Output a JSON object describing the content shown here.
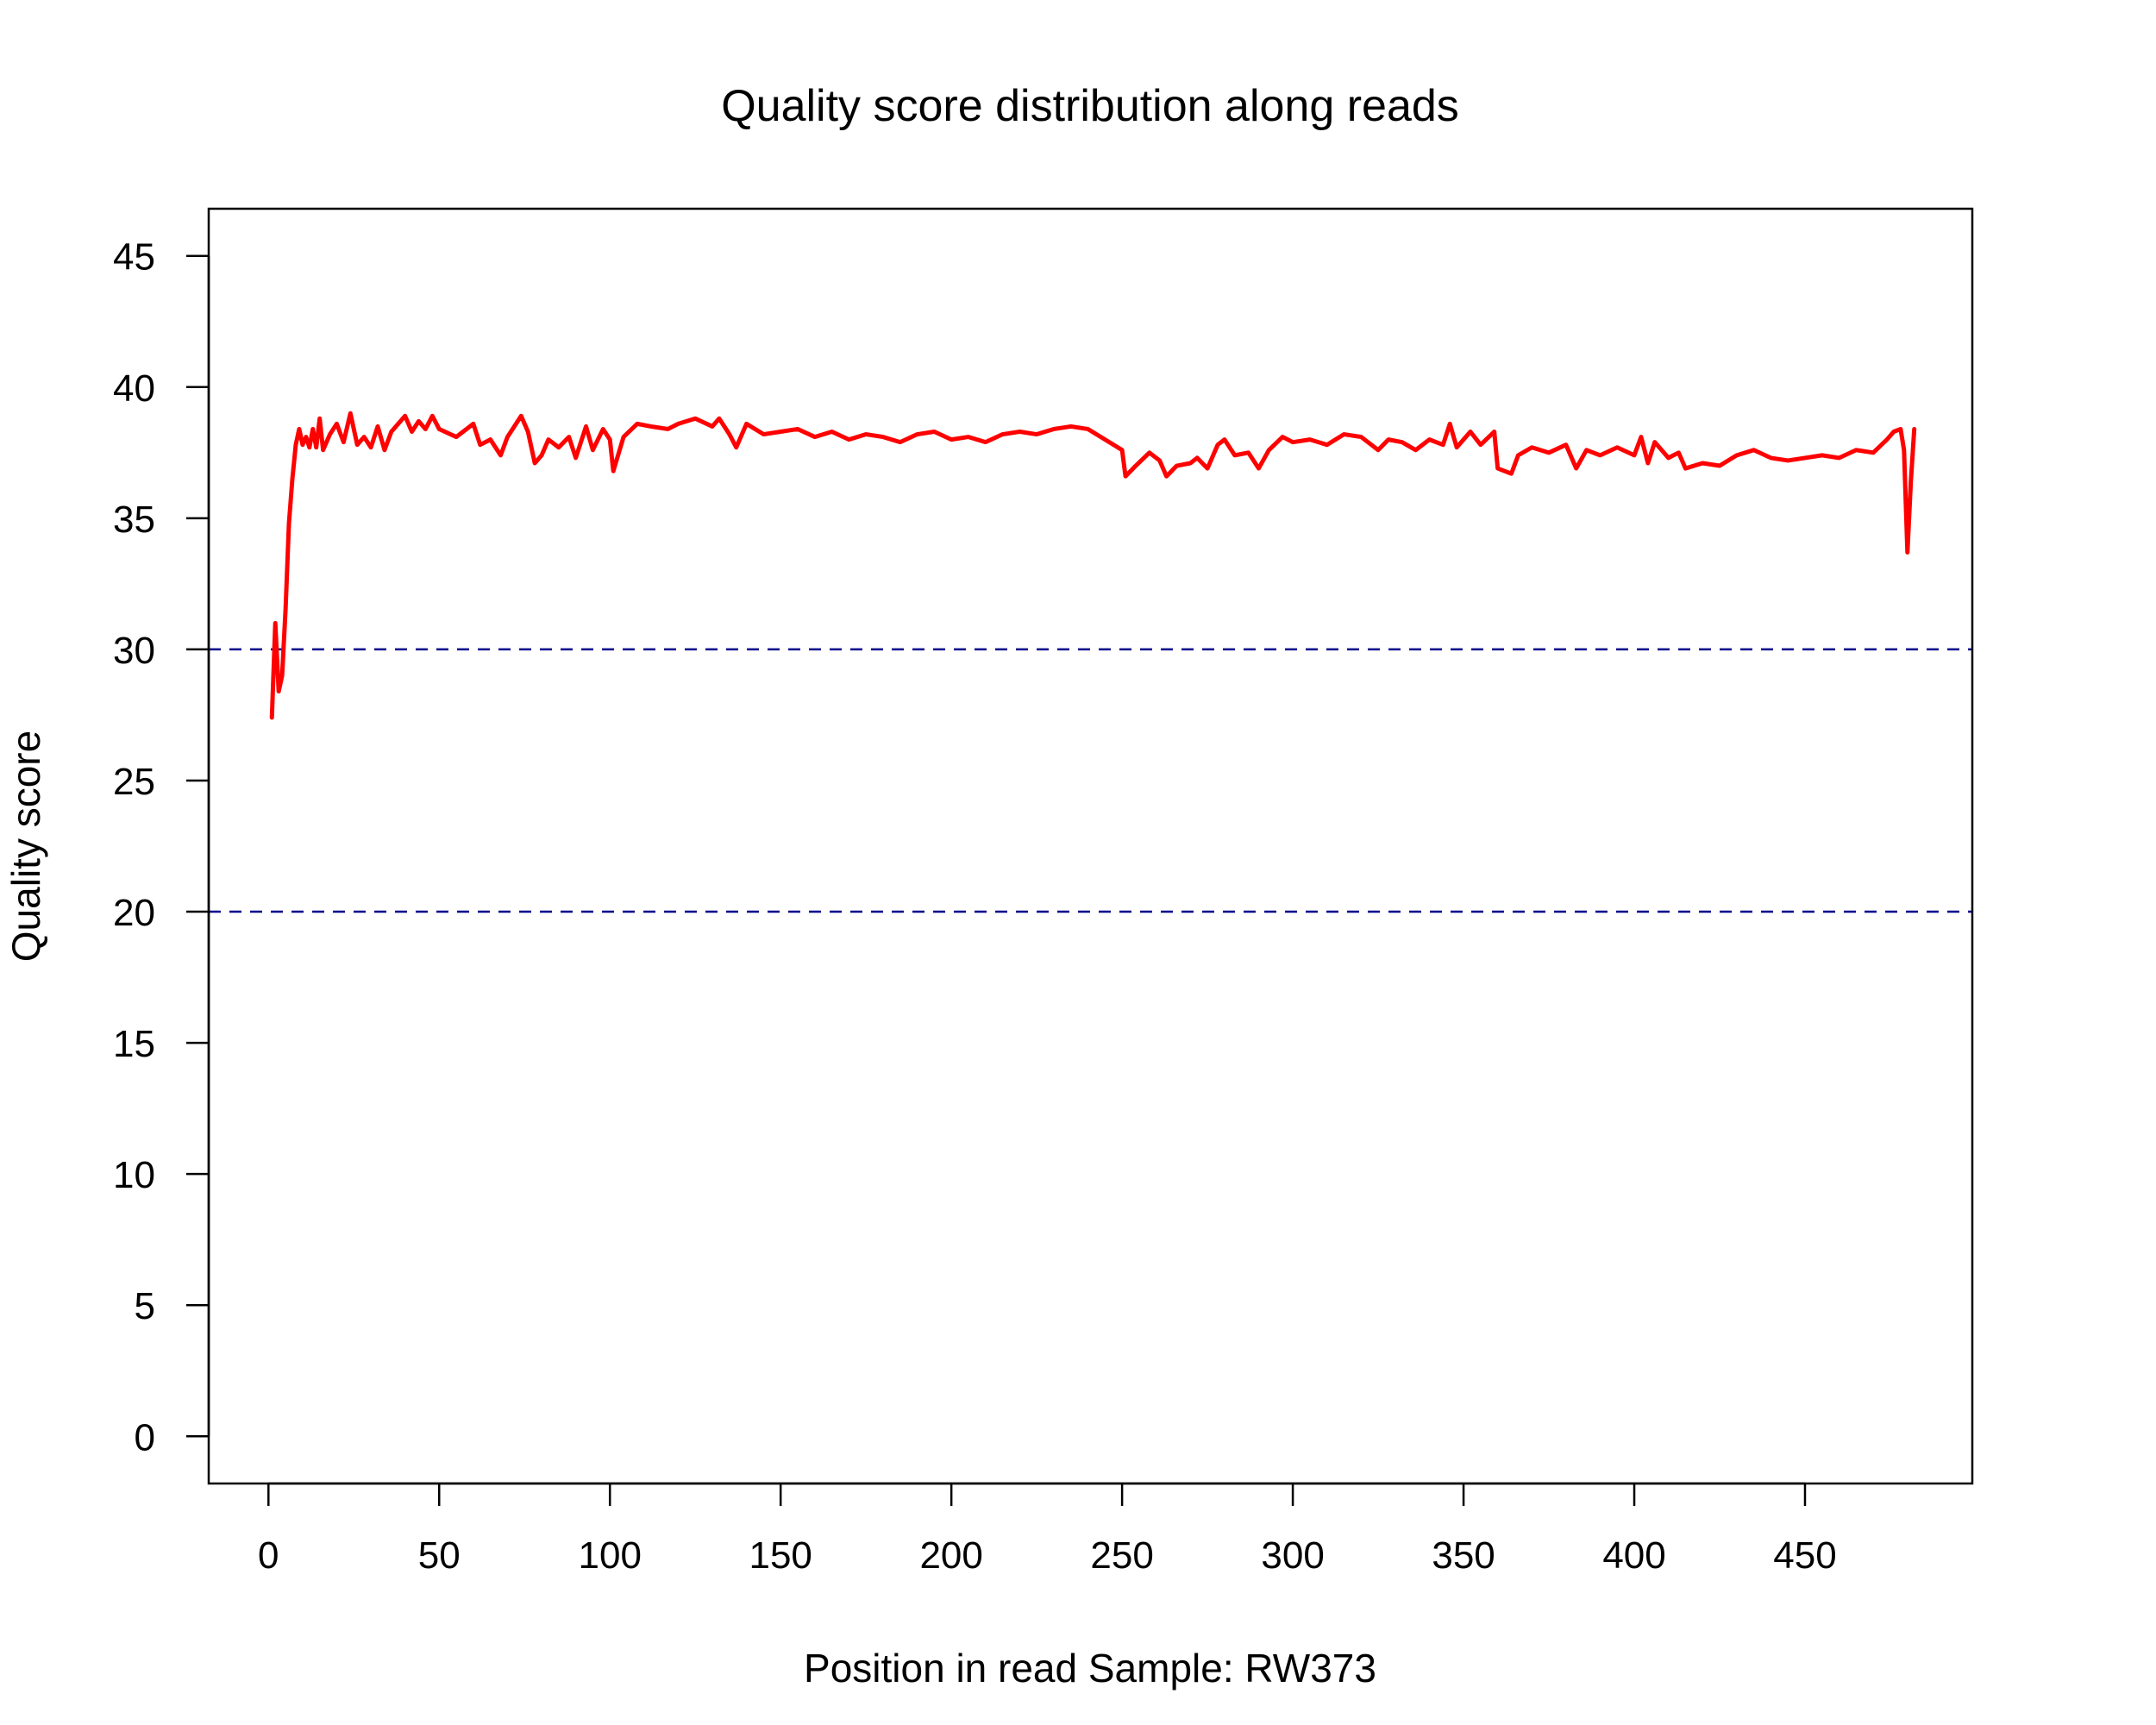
{
  "chart_data": {
    "type": "line",
    "title": "Quality score distribution along reads",
    "xlabel": "Position in read  Sample: RW373",
    "ylabel": "Quality score",
    "xlim": [
      -17.5,
      499
    ],
    "ylim": [
      -1.8,
      46.8
    ],
    "x_ticks": [
      0,
      50,
      100,
      150,
      200,
      250,
      300,
      350,
      400,
      450
    ],
    "y_ticks": [
      0,
      5,
      10,
      15,
      20,
      25,
      30,
      35,
      40,
      45
    ],
    "reference_lines": [
      {
        "y": 30,
        "style": "dashed",
        "color": "#00008B"
      },
      {
        "y": 20,
        "style": "dashed",
        "color": "#00008B"
      }
    ],
    "grid": false,
    "legend": "none",
    "series": [
      {
        "color": "#FF0000",
        "points": [
          [
            1,
            27.4
          ],
          [
            2,
            31.0
          ],
          [
            3,
            28.4
          ],
          [
            4,
            29.0
          ],
          [
            5,
            31.5
          ],
          [
            6,
            34.8
          ],
          [
            7,
            36.5
          ],
          [
            8,
            37.8
          ],
          [
            9,
            38.4
          ],
          [
            10,
            37.8
          ],
          [
            11,
            38.1
          ],
          [
            12,
            37.7
          ],
          [
            13,
            38.4
          ],
          [
            14,
            37.7
          ],
          [
            15,
            38.8
          ],
          [
            16,
            37.6
          ],
          [
            18,
            38.2
          ],
          [
            20,
            38.6
          ],
          [
            22,
            37.9
          ],
          [
            24,
            39.0
          ],
          [
            26,
            37.8
          ],
          [
            28,
            38.1
          ],
          [
            30,
            37.7
          ],
          [
            32,
            38.5
          ],
          [
            34,
            37.6
          ],
          [
            36,
            38.3
          ],
          [
            38,
            38.6
          ],
          [
            40,
            38.9
          ],
          [
            42,
            38.3
          ],
          [
            44,
            38.7
          ],
          [
            46,
            38.4
          ],
          [
            48,
            38.9
          ],
          [
            50,
            38.4
          ],
          [
            55,
            38.1
          ],
          [
            60,
            38.6
          ],
          [
            62,
            37.8
          ],
          [
            65,
            38.0
          ],
          [
            68,
            37.4
          ],
          [
            70,
            38.1
          ],
          [
            74,
            38.9
          ],
          [
            76,
            38.3
          ],
          [
            78,
            37.1
          ],
          [
            80,
            37.4
          ],
          [
            82,
            38.0
          ],
          [
            85,
            37.7
          ],
          [
            88,
            38.1
          ],
          [
            90,
            37.3
          ],
          [
            93,
            38.5
          ],
          [
            95,
            37.6
          ],
          [
            98,
            38.4
          ],
          [
            100,
            38.0
          ],
          [
            101,
            36.8
          ],
          [
            104,
            38.1
          ],
          [
            108,
            38.6
          ],
          [
            112,
            38.5
          ],
          [
            117,
            38.4
          ],
          [
            120,
            38.6
          ],
          [
            125,
            38.8
          ],
          [
            130,
            38.5
          ],
          [
            132,
            38.8
          ],
          [
            135,
            38.2
          ],
          [
            137,
            37.7
          ],
          [
            140,
            38.6
          ],
          [
            145,
            38.2
          ],
          [
            150,
            38.3
          ],
          [
            155,
            38.4
          ],
          [
            160,
            38.1
          ],
          [
            165,
            38.3
          ],
          [
            170,
            38.0
          ],
          [
            175,
            38.2
          ],
          [
            180,
            38.1
          ],
          [
            185,
            37.9
          ],
          [
            190,
            38.2
          ],
          [
            195,
            38.3
          ],
          [
            200,
            38.0
          ],
          [
            205,
            38.1
          ],
          [
            210,
            37.9
          ],
          [
            215,
            38.2
          ],
          [
            220,
            38.3
          ],
          [
            225,
            38.2
          ],
          [
            230,
            38.4
          ],
          [
            235,
            38.5
          ],
          [
            240,
            38.4
          ],
          [
            245,
            38.0
          ],
          [
            250,
            37.6
          ],
          [
            251,
            36.6
          ],
          [
            254,
            37.0
          ],
          [
            258,
            37.5
          ],
          [
            261,
            37.2
          ],
          [
            263,
            36.6
          ],
          [
            266,
            37.0
          ],
          [
            270,
            37.1
          ],
          [
            272,
            37.3
          ],
          [
            275,
            36.9
          ],
          [
            278,
            37.8
          ],
          [
            280,
            38.0
          ],
          [
            283,
            37.4
          ],
          [
            287,
            37.5
          ],
          [
            290,
            36.9
          ],
          [
            293,
            37.6
          ],
          [
            297,
            38.1
          ],
          [
            300,
            37.9
          ],
          [
            305,
            38.0
          ],
          [
            310,
            37.8
          ],
          [
            315,
            38.2
          ],
          [
            320,
            38.1
          ],
          [
            325,
            37.6
          ],
          [
            328,
            38.0
          ],
          [
            332,
            37.9
          ],
          [
            336,
            37.6
          ],
          [
            340,
            38.0
          ],
          [
            344,
            37.8
          ],
          [
            346,
            38.6
          ],
          [
            348,
            37.7
          ],
          [
            352,
            38.3
          ],
          [
            355,
            37.8
          ],
          [
            359,
            38.3
          ],
          [
            360,
            36.9
          ],
          [
            364,
            36.7
          ],
          [
            366,
            37.4
          ],
          [
            370,
            37.7
          ],
          [
            375,
            37.5
          ],
          [
            380,
            37.8
          ],
          [
            383,
            36.9
          ],
          [
            386,
            37.6
          ],
          [
            390,
            37.4
          ],
          [
            395,
            37.7
          ],
          [
            400,
            37.4
          ],
          [
            402,
            38.1
          ],
          [
            404,
            37.1
          ],
          [
            406,
            37.9
          ],
          [
            410,
            37.3
          ],
          [
            413,
            37.5
          ],
          [
            415,
            36.9
          ],
          [
            420,
            37.1
          ],
          [
            425,
            37.0
          ],
          [
            430,
            37.4
          ],
          [
            435,
            37.6
          ],
          [
            440,
            37.3
          ],
          [
            445,
            37.2
          ],
          [
            450,
            37.3
          ],
          [
            455,
            37.4
          ],
          [
            460,
            37.3
          ],
          [
            465,
            37.6
          ],
          [
            470,
            37.5
          ],
          [
            474,
            38.0
          ],
          [
            476,
            38.3
          ],
          [
            478,
            38.4
          ],
          [
            479,
            37.6
          ],
          [
            480,
            33.7
          ],
          [
            481,
            36.4
          ],
          [
            482,
            38.4
          ]
        ]
      }
    ]
  }
}
